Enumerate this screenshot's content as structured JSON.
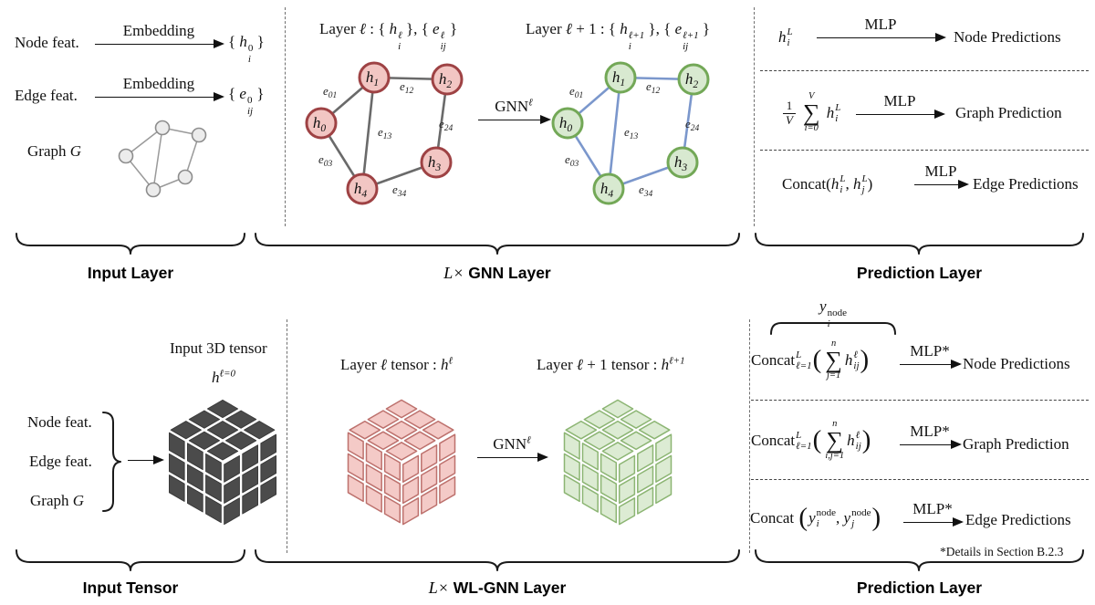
{
  "colors": {
    "node_red_fill": "#f2c6c3",
    "node_red_stroke": "#9e4244",
    "edge_gray": "#6a6a6a",
    "node_green_fill": "#d8e9d0",
    "node_green_stroke": "#73a857",
    "edge_blue": "#7b97cc",
    "input_node_fill": "#ececec",
    "input_node_stroke": "#8d8d8d",
    "input_edge": "#9a9a9a",
    "cube_dark_fill": "#4b4b4b",
    "cube_dark_stroke": "#3a3a3a",
    "cube_red_fill": "#f4cac7",
    "cube_red_stroke": "#bd716d",
    "cube_green_fill": "#dcebd3",
    "cube_green_stroke": "#8cb573"
  },
  "graph": {
    "nodes": [
      {
        "m": "h",
        "sub": "0"
      },
      {
        "m": "h",
        "sub": "1"
      },
      {
        "m": "h",
        "sub": "2"
      },
      {
        "m": "h",
        "sub": "3"
      },
      {
        "m": "h",
        "sub": "4"
      }
    ],
    "edges": [
      {
        "m": "e",
        "sub": "01"
      },
      {
        "m": "e",
        "sub": "12"
      },
      {
        "m": "e",
        "sub": "13"
      },
      {
        "m": "e",
        "sub": "24"
      },
      {
        "m": "e",
        "sub": "03"
      },
      {
        "m": "e",
        "sub": "34"
      }
    ]
  },
  "top_left": {
    "rows": [
      {
        "label": "Node feat.",
        "arrow": "Embedding",
        "out": [
          {
            "t": "{ ",
            "s": "rm"
          },
          {
            "t": "h",
            "s": "it"
          },
          {
            "ss": {
              "sup": "0",
              "sub": "i",
              "subIt": 1
            }
          },
          {
            "t": " }",
            "s": "rm"
          }
        ]
      },
      {
        "label": "Edge feat.",
        "arrow": "Embedding",
        "out": [
          {
            "t": "{ ",
            "s": "rm"
          },
          {
            "t": "e",
            "s": "it"
          },
          {
            "ss": {
              "sup": "0",
              "sub": "ij",
              "subIt": 1
            }
          },
          {
            "t": " }",
            "s": "rm"
          }
        ]
      }
    ],
    "graph_label": [
      {
        "t": "Graph ",
        "s": "rm"
      },
      {
        "t": "G",
        "s": "it"
      }
    ]
  },
  "top_mid": {
    "title_left": [
      {
        "t": "Layer ",
        "s": "rm"
      },
      {
        "t": "ℓ",
        "s": "it"
      },
      {
        "t": " : { ",
        "s": "rm"
      },
      {
        "t": "h",
        "s": "it"
      },
      {
        "ss": {
          "sup": "ℓ",
          "sub": "i",
          "supIt": 1,
          "subIt": 1
        }
      },
      {
        "t": " }, { ",
        "s": "rm"
      },
      {
        "t": "e",
        "s": "it"
      },
      {
        "ss": {
          "sup": "ℓ",
          "sub": "ij",
          "supIt": 1,
          "subIt": 1
        }
      },
      {
        "t": " }",
        "s": "rm"
      }
    ],
    "title_right": [
      {
        "t": "Layer ",
        "s": "rm"
      },
      {
        "t": "ℓ",
        "s": "it"
      },
      {
        "t": " + 1 : { ",
        "s": "rm"
      },
      {
        "t": "h",
        "s": "it"
      },
      {
        "ss": {
          "sup": "ℓ+1",
          "sub": "i",
          "supIt": 1,
          "subIt": 1
        }
      },
      {
        "t": " }, { ",
        "s": "rm"
      },
      {
        "t": "e",
        "s": "it"
      },
      {
        "ss": {
          "sup": "ℓ+1",
          "sub": "ij",
          "supIt": 1,
          "subIt": 1
        }
      },
      {
        "t": " }",
        "s": "rm"
      }
    ],
    "gnn": [
      {
        "t": "GNN",
        "s": "rm"
      },
      {
        "sup": "ℓ",
        "it": 1
      }
    ]
  },
  "top_right": {
    "rows": [
      {
        "lhs": [
          {
            "t": "h",
            "s": "it"
          },
          {
            "ss": {
              "sup": "L",
              "sub": "i",
              "supIt": 1,
              "subIt": 1
            }
          }
        ],
        "arrow": "MLP",
        "rhs": "Node Predictions"
      },
      {
        "lhs": [
          {
            "frac": {
              "num": "1",
              "den": "V",
              "denIt": 1
            }
          },
          {
            "op": "∑",
            "sup": "V",
            "sub": "i=0",
            "supIt": 1,
            "subIt": 1
          },
          {
            "t": " ",
            "s": "rm"
          },
          {
            "t": "h",
            "s": "it"
          },
          {
            "ss": {
              "sup": "L",
              "sub": "i",
              "supIt": 1,
              "subIt": 1
            }
          }
        ],
        "arrow": "MLP",
        "rhs": "Graph Prediction"
      },
      {
        "lhs": [
          {
            "t": "Concat(",
            "s": "rm"
          },
          {
            "t": "h",
            "s": "it"
          },
          {
            "ss": {
              "sup": "L",
              "sub": "i",
              "supIt": 1,
              "subIt": 1
            }
          },
          {
            "t": ", ",
            "s": "rm"
          },
          {
            "t": "h",
            "s": "it"
          },
          {
            "ss": {
              "sup": "L",
              "sub": "j",
              "supIt": 1,
              "subIt": 1
            }
          },
          {
            "t": ")",
            "s": "rm"
          }
        ],
        "arrow": "MLP",
        "rhs": "Edge Predictions"
      }
    ]
  },
  "bottom_left": {
    "title": "Input 3D tensor",
    "tensor": [
      {
        "t": "h",
        "s": "it"
      },
      {
        "sup": "ℓ=0",
        "it": 1
      }
    ],
    "items": [
      "Node feat.",
      "Edge feat."
    ],
    "graph_label": [
      {
        "t": "Graph ",
        "s": "rm"
      },
      {
        "t": "G",
        "s": "it"
      }
    ]
  },
  "bottom_mid": {
    "title_left": [
      {
        "t": "Layer ",
        "s": "rm"
      },
      {
        "t": "ℓ",
        "s": "it"
      },
      {
        "t": " tensor : ",
        "s": "rm"
      },
      {
        "t": "h",
        "s": "it"
      },
      {
        "sup": "ℓ",
        "it": 1
      }
    ],
    "title_right": [
      {
        "t": "Layer ",
        "s": "rm"
      },
      {
        "t": "ℓ",
        "s": "it"
      },
      {
        "t": " + 1 tensor : ",
        "s": "rm"
      },
      {
        "t": "h",
        "s": "it"
      },
      {
        "sup": "ℓ+1",
        "it": 1
      }
    ],
    "gnn": [
      {
        "t": "GNN",
        "s": "rm"
      },
      {
        "sup": "ℓ",
        "it": 1
      }
    ]
  },
  "bottom_right": {
    "over": [
      {
        "t": "y",
        "s": "it"
      },
      {
        "ss": {
          "sup": "node",
          "sub": "i",
          "subIt": 1
        }
      }
    ],
    "rows": [
      {
        "lhs": [
          {
            "t": "Concat",
            "s": "rm"
          },
          {
            "ss": {
              "sup": "L",
              "sub": "ℓ=1",
              "supIt": 1,
              "subIt": 1
            }
          },
          {
            "t": "(",
            "s": "bigp"
          },
          {
            "op": "∑",
            "sup": "n",
            "sub": "j=1",
            "supIt": 1,
            "subIt": 1
          },
          {
            "t": "h",
            "s": "it"
          },
          {
            "ss": {
              "sup": "ℓ",
              "sub": "ij",
              "supIt": 1,
              "subIt": 1
            }
          },
          {
            "t": ")",
            "s": "bigp"
          }
        ],
        "arrow": "MLP*",
        "rhs": "Node Predictions"
      },
      {
        "lhs": [
          {
            "t": "Concat",
            "s": "rm"
          },
          {
            "ss": {
              "sup": "L",
              "sub": "ℓ=1",
              "supIt": 1,
              "subIt": 1
            }
          },
          {
            "t": "(",
            "s": "bigp"
          },
          {
            "op": "∑",
            "sup": "n",
            "sub": "i,j=1",
            "supIt": 1,
            "subIt": 1
          },
          {
            "t": "h",
            "s": "it"
          },
          {
            "ss": {
              "sup": "ℓ",
              "sub": "ij",
              "supIt": 1,
              "subIt": 1
            }
          },
          {
            "t": ")",
            "s": "bigp"
          }
        ],
        "arrow": "MLP*",
        "rhs": "Graph Prediction"
      },
      {
        "lhs": [
          {
            "t": "Concat ",
            "s": "rm"
          },
          {
            "t": "(",
            "s": "bigp"
          },
          {
            "t": "y",
            "s": "it"
          },
          {
            "ss": {
              "sup": "node",
              "sub": "i",
              "subIt": 1
            }
          },
          {
            "t": ", ",
            "s": "rm"
          },
          {
            "t": "y",
            "s": "it"
          },
          {
            "ss": {
              "sup": "node",
              "sub": "j",
              "subIt": 1
            }
          },
          {
            "t": ")",
            "s": "bigp"
          }
        ],
        "arrow": "MLP*",
        "rhs": "Edge Predictions"
      }
    ],
    "footnote": "*Details in Section B.2.3"
  },
  "braces": {
    "top": [
      {
        "pre": "",
        "text": "Input Layer"
      },
      {
        "pre": "L×",
        "text": "GNN Layer"
      },
      {
        "pre": "",
        "text": "Prediction Layer"
      }
    ],
    "bottom": [
      {
        "pre": "",
        "text": "Input Tensor"
      },
      {
        "pre": "L×",
        "text": "WL-GNN Layer"
      },
      {
        "pre": "",
        "text": "Prediction Layer"
      }
    ]
  }
}
